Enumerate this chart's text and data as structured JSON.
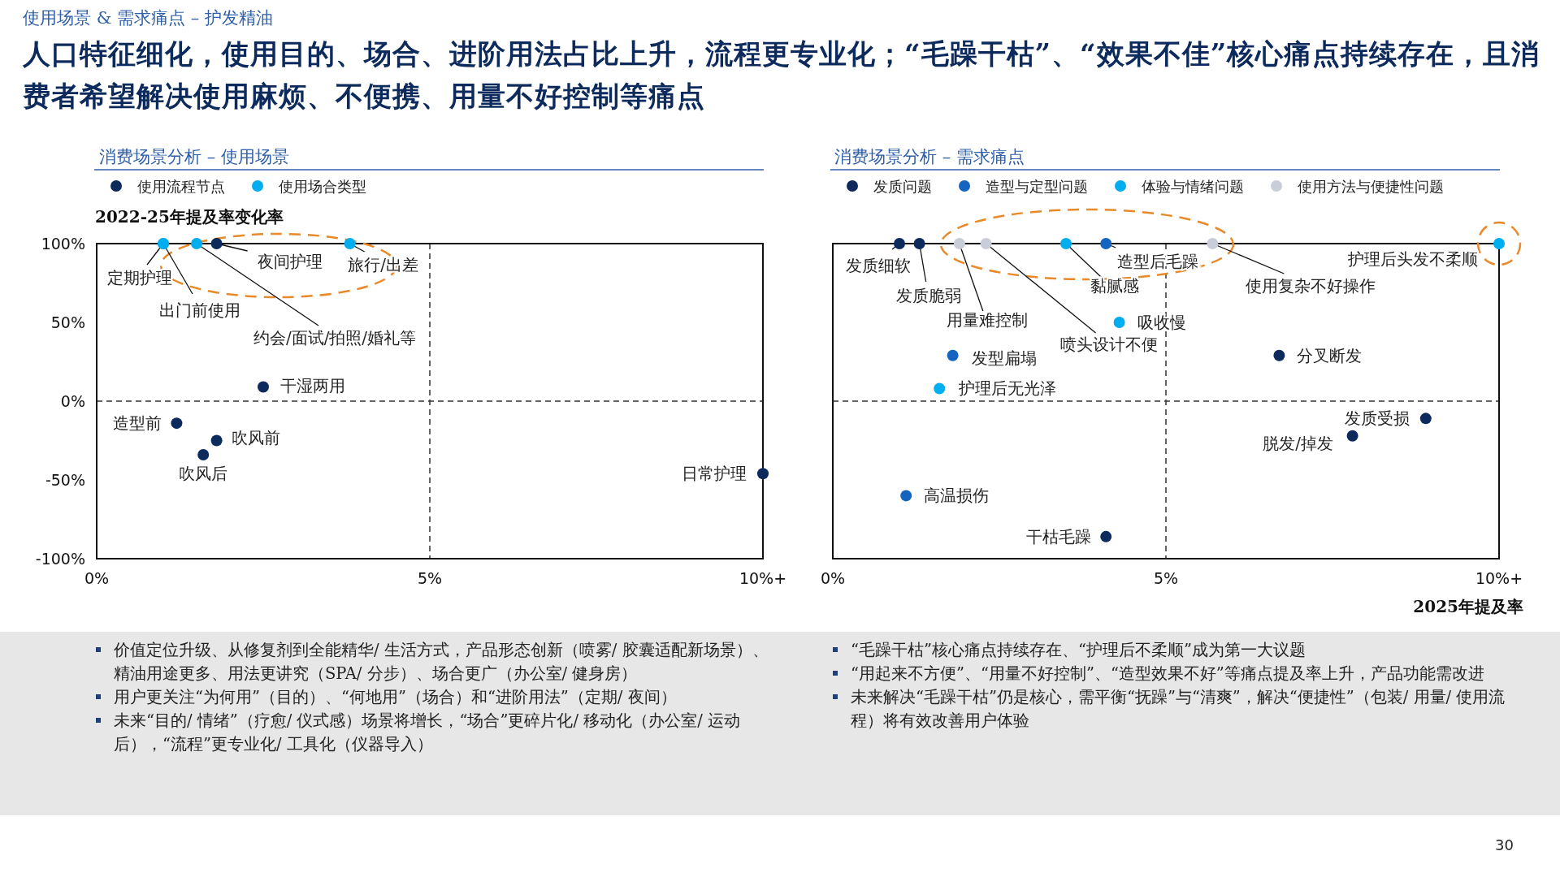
{
  "chart_data": [
    {
      "type": "other",
      "subtitle": "使用场景 & 需求痛点 – 护发精油",
      "title": "人口特征细化，使用目的、场合、进阶用法占比上升，流程更专业化；“毛躁干枯”、“效果不佳”核心痛点持续存在，且消费者希望解决使用麻烦、不便携、用量不好控制等痛点",
      "annotations": [
        "30"
      ]
    },
    {
      "type": "scatter",
      "title": "消费场景分析 – 使用场景",
      "ylabel": "2022-25年提及率变化率",
      "legend": "top",
      "marker": "circle",
      "xlim": [
        0,
        10
      ],
      "xticks": [
        {
          "value": 0,
          "label": "0%"
        },
        {
          "value": 5,
          "label": "5%"
        },
        {
          "value": 10,
          "label": "10%+"
        }
      ],
      "ylim": [
        -100,
        100
      ],
      "yticks": [
        {
          "value": 100,
          "label": "100%"
        },
        {
          "value": 50,
          "label": "50%"
        },
        {
          "value": 0,
          "label": "0%"
        },
        {
          "value": -50,
          "label": "-50%"
        },
        {
          "value": -100,
          "label": "-100%"
        }
      ],
      "ref_lines": [
        {
          "axis": "x",
          "value": 5,
          "line_style": "dashed"
        },
        {
          "axis": "y",
          "value": 0,
          "line_style": "dashed"
        }
      ],
      "series": [
        {
          "name": "使用流程节点",
          "color": "#0d2a5c",
          "x": [
            1.8,
            2.5,
            1.2,
            1.8,
            1.6,
            10
          ],
          "values": [
            100,
            9,
            -14,
            -25,
            -34,
            -46
          ],
          "value_labels": [
            "夜间护理",
            "干湿两用",
            "造型前",
            "吹风前",
            "吹风后",
            "日常护理"
          ]
        },
        {
          "name": "使用场合类型",
          "color": "#00aeef",
          "x": [
            1.0,
            1.0,
            1.5,
            3.8
          ],
          "values": [
            100,
            100,
            100,
            100
          ],
          "value_labels": [
            "定期护理",
            "出门前使用",
            "约会/面试/拍照/婚礼等",
            "旅行/出差"
          ]
        }
      ],
      "annotations": [
        "价值定位升级、从修复剂到全能精华/ 生活方式，产品形态创新（喷雾/ 胶囊适配新场景）、精油用途更多、用法更讲究（SPA/ 分步）、场合更广（办公室/ 健身房）",
        "用户更关注“为何用”（目的）、“何地用”（场合）和“进阶用法”（定期/ 夜间）",
        "未来“目的/ 情绪”（疗愈/ 仪式感）场景将增长，“场合”更碎片化/ 移动化（办公室/ 运动后），“流程”更专业化/ 工具化（仪器导入）"
      ]
    },
    {
      "type": "scatter",
      "title": "消费场景分析 – 需求痛点",
      "xlabel": "2025年提及率",
      "legend": "top",
      "marker": "circle",
      "tick_labels": "x",
      "xlim": [
        0,
        10
      ],
      "xticks": [
        {
          "value": 0,
          "label": "0%"
        },
        {
          "value": 5,
          "label": "5%"
        },
        {
          "value": 10,
          "label": "10%+"
        }
      ],
      "ylim": [
        -100,
        100
      ],
      "ref_lines": [
        {
          "axis": "x",
          "value": 5,
          "line_style": "dashed"
        },
        {
          "axis": "y",
          "value": 0,
          "line_style": "dashed"
        }
      ],
      "series": [
        {
          "name": "发质问题",
          "color": "#0d2a5c",
          "x": [
            1.0,
            1.3,
            6.7,
            8.9,
            7.8,
            4.1
          ],
          "values": [
            100,
            100,
            29,
            -11,
            -22,
            -86
          ],
          "value_labels": [
            "发质细软",
            "发质脆弱",
            "分叉断发",
            "发质受损",
            "脱发/掉发",
            "干枯毛躁"
          ]
        },
        {
          "name": "造型与定型问题",
          "color": "#1565c0",
          "x": [
            4.1,
            1.8,
            1.1
          ],
          "values": [
            100,
            29,
            -60
          ],
          "value_labels": [
            "造型后毛躁",
            "发型扁塌",
            "高温损伤"
          ]
        },
        {
          "name": "体验与情绪问题",
          "color": "#00aeef",
          "x": [
            3.5,
            4.3,
            1.6,
            10
          ],
          "values": [
            100,
            50,
            8,
            100
          ],
          "value_labels": [
            "黏腻感",
            "吸收慢",
            "护理后无光泽",
            "护理后头发不柔顺"
          ]
        },
        {
          "name": "使用方法与便捷性问题",
          "color": "#c9cdd8",
          "x": [
            1.9,
            2.3,
            5.7
          ],
          "values": [
            100,
            100,
            100
          ],
          "value_labels": [
            "用量难控制",
            "喷头设计不便",
            "使用复杂不好操作"
          ]
        }
      ],
      "annotations": [
        "“毛躁干枯”核心痛点持续存在、“护理后不柔顺”成为第一大议题",
        "“用起来不方便”、“用量不好控制”、“造型效果不好”等痛点提及率上升，产品功能需改进",
        "未来解决“毛躁干枯”仍是核心，需平衡“抚躁”与“清爽”，解决“便捷性”（包装/ 用量/ 使用流程）将有效改善用户体验"
      ]
    }
  ]
}
